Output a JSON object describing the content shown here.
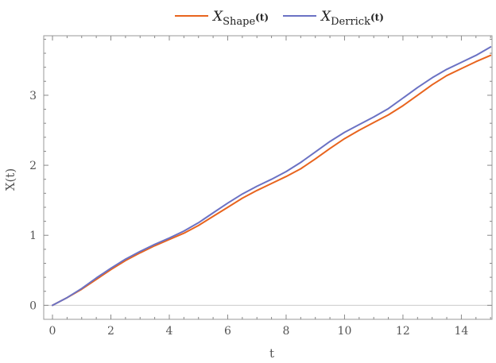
{
  "chart_data": {
    "type": "line",
    "title": "",
    "xlabel": "t",
    "ylabel": "X(t)",
    "xlim": [
      -0.3,
      15.05
    ],
    "ylim": [
      -0.2,
      3.85
    ],
    "xticks": [
      0,
      2,
      4,
      6,
      8,
      10,
      12,
      14
    ],
    "yticks": [
      0,
      1,
      2,
      3
    ],
    "grid": false,
    "zero_line": true,
    "legend_position": "top-center",
    "series": [
      {
        "name": "X",
        "name_subscript": "Shape",
        "name_argument": "(t)",
        "color": "#e8641e",
        "x": [
          0,
          0.5,
          1,
          1.5,
          2,
          2.5,
          3,
          3.5,
          4,
          4.5,
          5,
          5.5,
          6,
          6.5,
          7,
          7.5,
          8,
          8.5,
          9,
          9.5,
          10,
          10.5,
          11,
          11.5,
          12,
          12.5,
          13,
          13.5,
          14,
          14.5,
          15
        ],
        "y": [
          0,
          0.11,
          0.23,
          0.37,
          0.51,
          0.64,
          0.75,
          0.85,
          0.94,
          1.03,
          1.14,
          1.27,
          1.4,
          1.53,
          1.64,
          1.74,
          1.84,
          1.95,
          2.09,
          2.24,
          2.38,
          2.5,
          2.61,
          2.72,
          2.85,
          3.0,
          3.15,
          3.28,
          3.38,
          3.48,
          3.57
        ]
      },
      {
        "name": "X",
        "name_subscript": "Derrick",
        "name_argument": "(t)",
        "color": "#6b72c4",
        "x": [
          0,
          0.5,
          1,
          1.5,
          2,
          2.5,
          3,
          3.5,
          4,
          4.5,
          5,
          5.5,
          6,
          6.5,
          7,
          7.5,
          8,
          8.5,
          9,
          9.5,
          10,
          10.5,
          11,
          11.5,
          12,
          12.5,
          13,
          13.5,
          14,
          14.5,
          15
        ],
        "y": [
          0,
          0.11,
          0.24,
          0.39,
          0.53,
          0.66,
          0.77,
          0.87,
          0.96,
          1.06,
          1.18,
          1.32,
          1.46,
          1.59,
          1.7,
          1.8,
          1.91,
          2.04,
          2.19,
          2.34,
          2.47,
          2.58,
          2.69,
          2.81,
          2.96,
          3.11,
          3.25,
          3.37,
          3.47,
          3.57,
          3.69
        ]
      }
    ]
  }
}
